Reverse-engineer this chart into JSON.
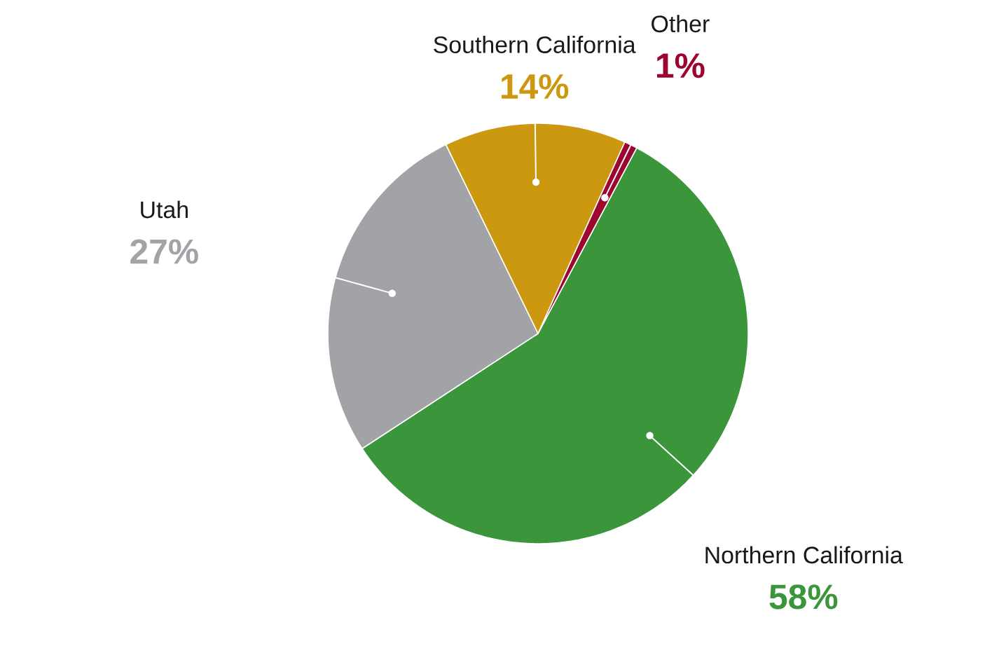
{
  "chart_data": {
    "type": "pie",
    "categories": [
      "Northern California",
      "Utah",
      "Southern California",
      "Other"
    ],
    "values": [
      58,
      27,
      14,
      1
    ],
    "colors": [
      "#3a953b",
      "#a2a3a7",
      "#cc9810",
      "#9b0530"
    ],
    "value_labels": [
      "58%",
      "27%",
      "14%",
      "1%"
    ]
  }
}
